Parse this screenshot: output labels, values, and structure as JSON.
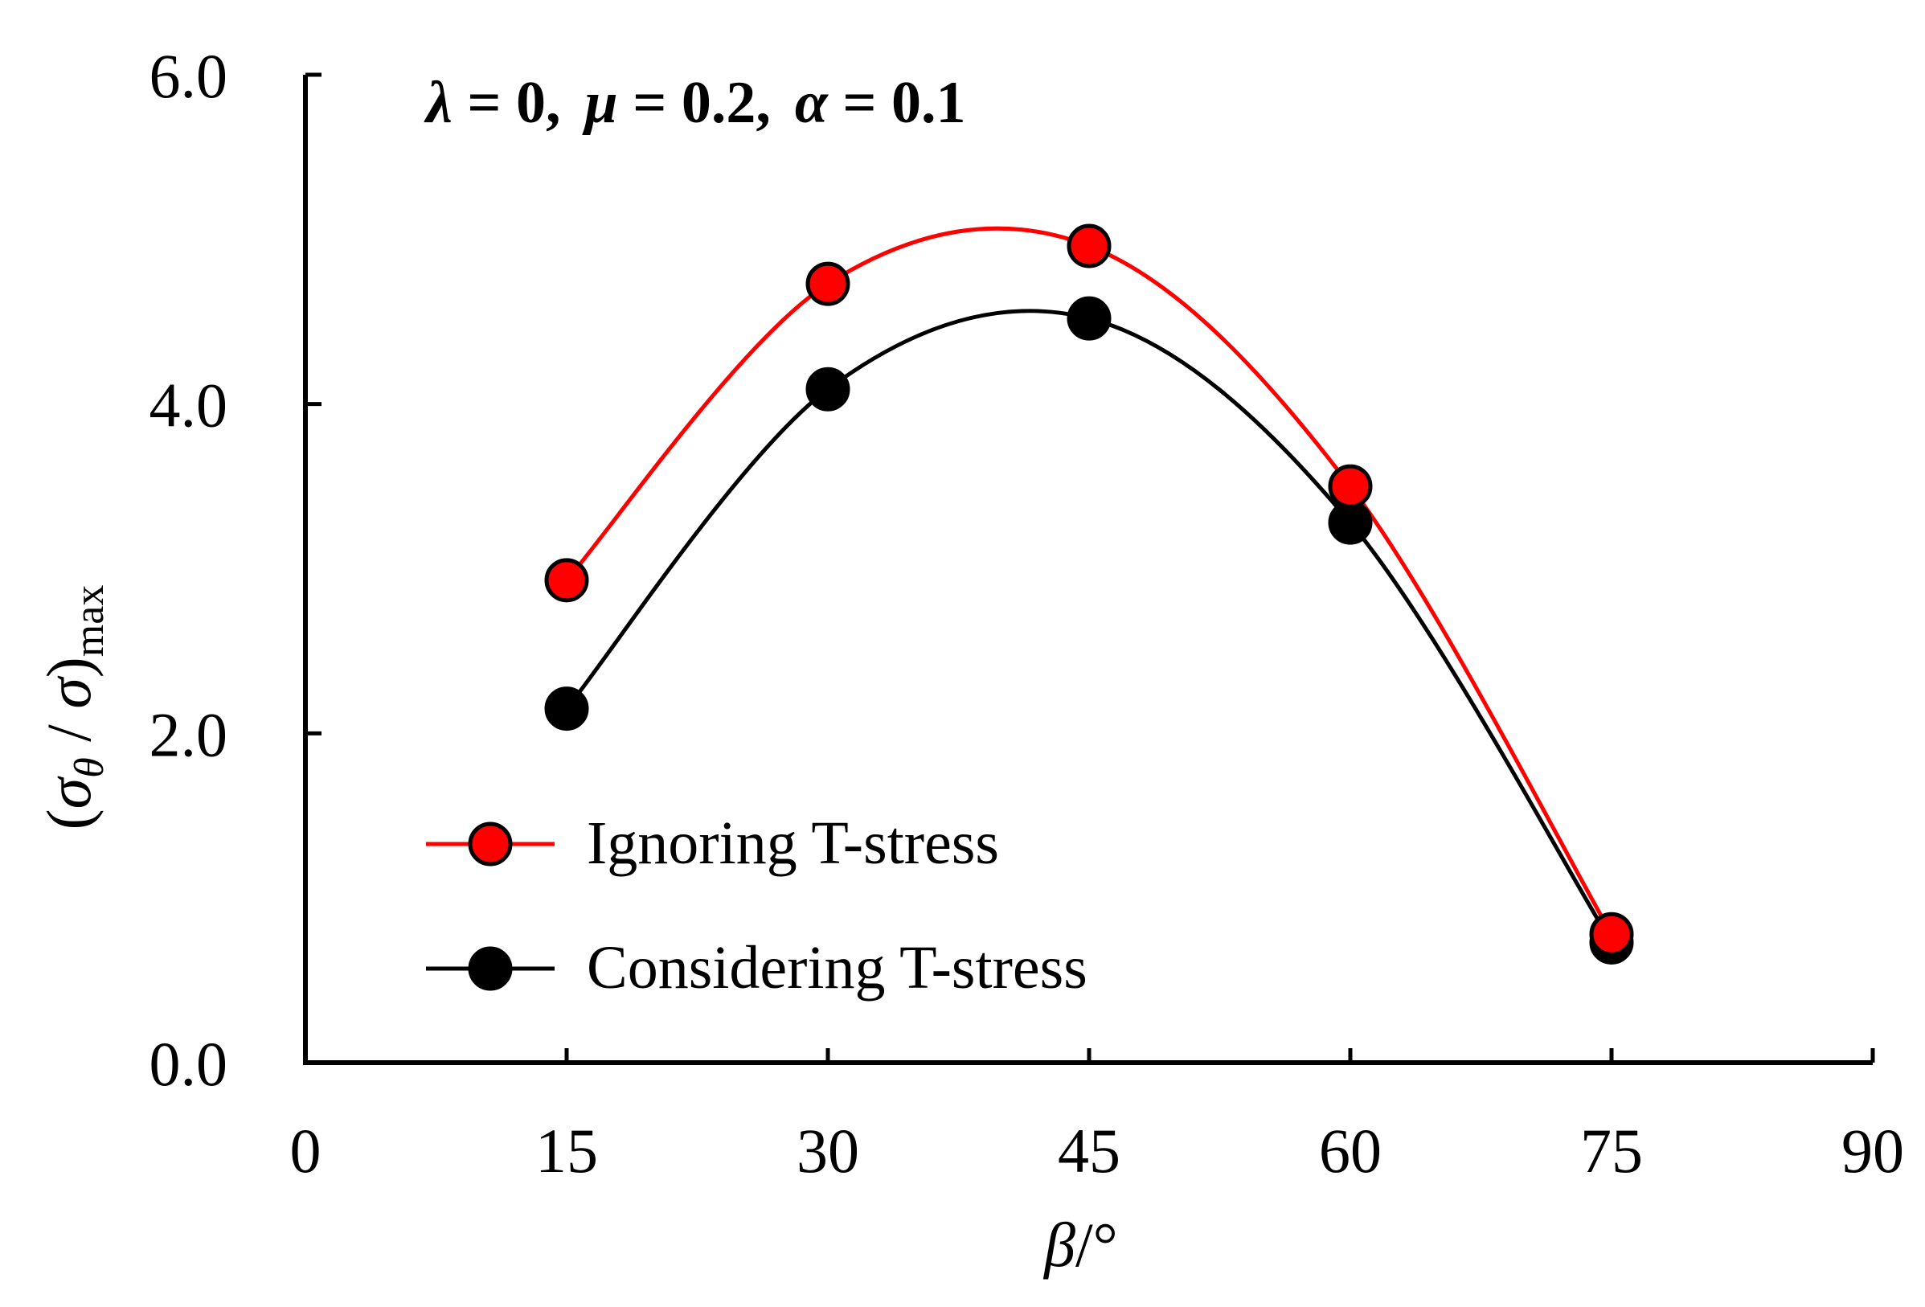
{
  "chart_data": {
    "type": "line",
    "title": "",
    "annotation": {
      "lambda_sym": "λ",
      "lambda_val": " = 0,",
      "mu_sym": "μ",
      "mu_val": " = 0.2,",
      "alpha_sym": "α",
      "alpha_val": " = 0.1"
    },
    "xlabel": {
      "symbol": "β",
      "unit": "/°"
    },
    "ylabel": {
      "open": "(",
      "sigma1": "σ",
      "sub1": "θ",
      "slash": " / ",
      "sigma2": "σ",
      "close": ")",
      "sub2": "max"
    },
    "x": [
      15,
      30,
      45,
      60,
      75
    ],
    "xlim": [
      0,
      90
    ],
    "ylim": [
      0,
      6
    ],
    "xticks": [
      "0",
      "15",
      "30",
      "45",
      "60",
      "75",
      "90"
    ],
    "yticks": [
      "0.0",
      "2.0",
      "4.0",
      "6.0"
    ],
    "xtick_values": [
      0,
      15,
      30,
      45,
      60,
      75,
      90
    ],
    "ytick_values": [
      0,
      2,
      4,
      6
    ],
    "grid": false,
    "legend_position": "bottom-left",
    "series": [
      {
        "name": "Ignoring T-stress",
        "color": "#ff0000",
        "marker_fill": "#ff0000",
        "values": [
          2.93,
          4.73,
          4.96,
          3.5,
          0.78
        ]
      },
      {
        "name": "Considering T-stress",
        "color": "#000000",
        "marker_fill": "#000000",
        "values": [
          2.15,
          4.09,
          4.52,
          3.28,
          0.73
        ]
      }
    ]
  }
}
